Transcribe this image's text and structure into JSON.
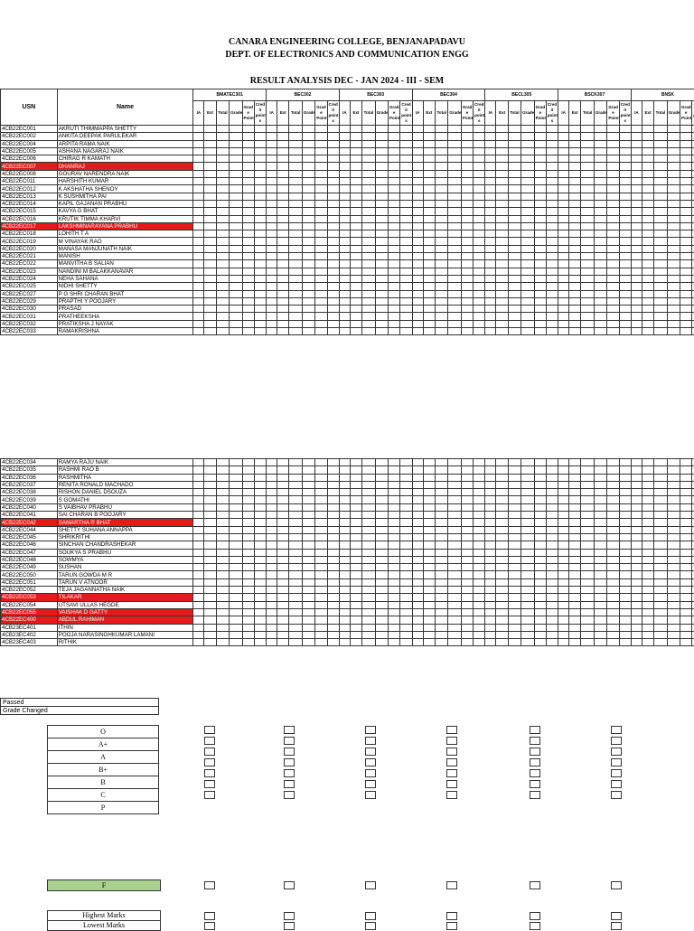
{
  "header": {
    "college": "CANARA ENGINEERING COLLEGE, BENJANAPADAVU",
    "dept": "DEPT. OF ELECTRONICS AND COMMUNICATION ENGG",
    "title": "RESULT ANALYSIS DEC - JAN 2024 - III - SEM"
  },
  "table": {
    "usn_label": "USN",
    "name_label": "Name",
    "subjects": [
      "BMATEC301",
      "BEC302",
      "BEC303",
      "BEC304",
      "BECL305",
      "BSCK307",
      "BNSK"
    ],
    "subcols": [
      "IA",
      "Ext",
      "Total",
      "Grade",
      "Grad e Point",
      "Cred it point s"
    ]
  },
  "rows1": [
    {
      "u": "4CB22EC001",
      "n": "AKRUTI THIMMAPPA SHETTY",
      "r": 0
    },
    {
      "u": "4CB22EC002",
      "n": "ANKITA DEEPAK PARULEKAR",
      "r": 0
    },
    {
      "u": "4CB22EC004",
      "n": "ARPITA RAMA NAIK",
      "r": 0
    },
    {
      "u": "4CB22EC005",
      "n": "ASHANA NAGARAJ NAIK",
      "r": 0
    },
    {
      "u": "4CB22EC006",
      "n": "CHIRAG R KAMATH",
      "r": 0
    },
    {
      "u": "4CB22EC007",
      "n": "DHANRAJ",
      "r": 1
    },
    {
      "u": "4CB22EC008",
      "n": "GOURAV NARENDRA NAIK",
      "r": 0
    },
    {
      "u": "4CB22EC011",
      "n": "HARSHITH KUMAR",
      "r": 0
    },
    {
      "u": "4CB22EC012",
      "n": "K AKSHATHA SHENOY",
      "r": 0
    },
    {
      "u": "4CB22EC013",
      "n": "K SUSHMITHA PAI",
      "r": 0
    },
    {
      "u": "4CB22EC014",
      "n": "KAPIL GAJANAN PRABHU",
      "r": 0
    },
    {
      "u": "4CB22EC015",
      "n": "KAVYA G BHAT",
      "r": 0
    },
    {
      "u": "4CB22EC016",
      "n": "KRUTIK TIMMA KHARVI",
      "r": 0
    },
    {
      "u": "4CB22EC017",
      "n": "LAKSHMINARAYANA PRABHU",
      "r": 1
    },
    {
      "u": "4CB22EC018",
      "n": "LOHITH T A",
      "r": 0
    },
    {
      "u": "4CB22EC019",
      "n": "M VINAYAK RAO",
      "r": 0
    },
    {
      "u": "4CB22EC020",
      "n": "MANASA MANJUNATH NAIK",
      "r": 0
    },
    {
      "u": "4CB22EC021",
      "n": "MANISH",
      "r": 0
    },
    {
      "u": "4CB22EC022",
      "n": "MANVITHA B SALIAN",
      "r": 0
    },
    {
      "u": "4CB22EC023",
      "n": "NANDINI M BALAKKANAVAR",
      "r": 0
    },
    {
      "u": "4CB22EC024",
      "n": "NEHA SAHANA",
      "r": 0
    },
    {
      "u": "4CB22EC025",
      "n": "NIDHI SHETTY",
      "r": 0
    },
    {
      "u": "4CB22EC027",
      "n": "P G SHRI CHARAN BHAT",
      "r": 0
    },
    {
      "u": "4CB22EC029",
      "n": "PRAPTHI Y POOJARY",
      "r": 0
    },
    {
      "u": "4CB22EC030",
      "n": "PRASAD",
      "r": 0
    },
    {
      "u": "4CB22EC031",
      "n": "PRATHEEKSHA",
      "r": 0
    },
    {
      "u": "4CB22EC032",
      "n": "PRATIKSHA J NAYAK",
      "r": 0
    },
    {
      "u": "4CB22EC033",
      "n": "RAMAKRISHNA",
      "r": 0
    }
  ],
  "rows2": [
    {
      "u": "4CB22EC034",
      "n": "RAMYA RAJU NAIK",
      "r": 0
    },
    {
      "u": "4CB22EC035",
      "n": "RASHMI RAO B",
      "r": 0
    },
    {
      "u": "4CB22EC036",
      "n": "RASHMITHA",
      "r": 0
    },
    {
      "u": "4CB22EC037",
      "n": "RENITA RONALD MACHADO",
      "r": 0
    },
    {
      "u": "4CB22EC038",
      "n": "RISHON DANIEL DSOUZA",
      "r": 0
    },
    {
      "u": "4CB22EC039",
      "n": "S GOMATHI",
      "r": 0
    },
    {
      "u": "4CB22EC040",
      "n": "S VAIBHAV PRABHU",
      "r": 0
    },
    {
      "u": "4CB22EC041",
      "n": "SAI CHARAN B POOJARY",
      "r": 0
    },
    {
      "u": "4CB22EC042",
      "n": "SAMARTHA R BHAT",
      "r": 1
    },
    {
      "u": "4CB22EC044",
      "n": "SHETTY SUHANA ANNAPPA",
      "r": 0
    },
    {
      "u": "4CB22EC045",
      "n": "SHRIKRITHI",
      "r": 0
    },
    {
      "u": "4CB22EC046",
      "n": "SINCHAN CHANDRASHEKAR",
      "r": 0
    },
    {
      "u": "4CB22EC047",
      "n": "SOUKYA S PRABHU",
      "r": 0
    },
    {
      "u": "4CB22EC048",
      "n": "SOWMYA",
      "r": 0
    },
    {
      "u": "4CB22EC049",
      "n": "SUSHAN",
      "r": 0
    },
    {
      "u": "4CB22EC050",
      "n": "TARUN GOWDA M R",
      "r": 0
    },
    {
      "u": "4CB22EC051",
      "n": "TARUN V ATNOOR",
      "r": 0
    },
    {
      "u": "4CB22EC052",
      "n": "TEJA JAGANNATHA NAIK",
      "r": 0
    },
    {
      "u": "4CB22EC053",
      "n": "TILAKAR",
      "r": 1
    },
    {
      "u": "4CB22EC054",
      "n": "UTSAVI ULLAS HEGDE",
      "r": 0
    },
    {
      "u": "4CB22EC055",
      "n": "VAISHAK D GATTY",
      "r": 1
    },
    {
      "u": "4CB22EC400",
      "n": "ABDUL RAHIMAN",
      "r": 1
    },
    {
      "u": "4CB23EC401",
      "n": "ITHIN",
      "r": 0
    },
    {
      "u": "4CB23EC402",
      "n": "POOJA NARASINGHKUMAR LAMANI",
      "r": 0
    },
    {
      "u": "4CB23EC403",
      "n": "RITHIK",
      "r": 0
    }
  ],
  "legend": {
    "passed": "Passed",
    "grade_changed": "Grade Changed"
  },
  "grades": [
    "O",
    "A+",
    "A",
    "B+",
    "B",
    "C",
    "P"
  ],
  "fail_label": "F",
  "highest_label": "Highest Marks",
  "lowest_label": "Lowest Marks"
}
